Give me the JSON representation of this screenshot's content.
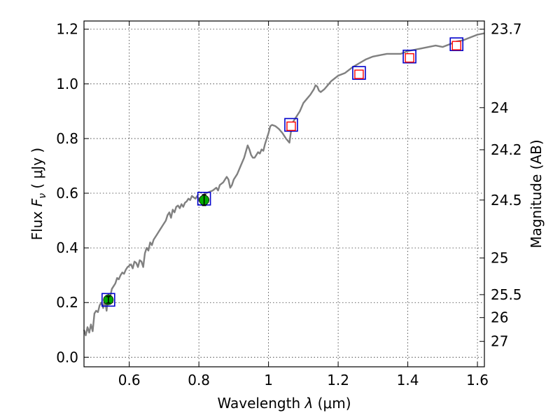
{
  "chart_data": {
    "type": "scatter",
    "xlabel_prefix": "Wavelength  ",
    "xlabel_symbol": "λ",
    "xlabel_suffix": " (μm)",
    "ylabel_prefix": "Flux  ",
    "ylabel_symbol": "F",
    "ylabel_subscript": "ν",
    "ylabel_suffix": "  ( μJy )",
    "y2label": "Magnitude (AB)",
    "xlim": [
      0.47,
      1.62
    ],
    "ylim": [
      -0.035,
      1.23
    ],
    "xticks": [
      0.6,
      0.8,
      1.0,
      1.2,
      1.4,
      1.6
    ],
    "xtick_labels": [
      "0.6",
      "0.8",
      "1",
      "1.2",
      "1.4",
      "1.6"
    ],
    "yticks": [
      0.0,
      0.2,
      0.4,
      0.6,
      0.8,
      1.0,
      1.2
    ],
    "ytick_labels": [
      "0.0",
      "0.2",
      "0.4",
      "0.6",
      "0.8",
      "1.0",
      "1.2"
    ],
    "y2ticks": [
      {
        "label": "23.7",
        "flux": 1.2
      },
      {
        "label": "24",
        "flux": 0.913
      },
      {
        "label": "24.2",
        "flux": 0.759
      },
      {
        "label": "24.5",
        "flux": 0.575
      },
      {
        "label": "25",
        "flux": 0.363
      },
      {
        "label": "25.5",
        "flux": 0.229
      },
      {
        "label": "26",
        "flux": 0.145
      },
      {
        "label": "27",
        "flux": 0.058
      }
    ],
    "grid": true,
    "colors": {
      "model_line": "#808080",
      "photometry_box": "#0000cc",
      "model_flux_marker": "#ff0000",
      "detection_marker": "#00aa00"
    },
    "series": [
      {
        "name": "model spectrum",
        "style": "line",
        "points": [
          [
            0.47,
            0.1
          ],
          [
            0.475,
            0.08
          ],
          [
            0.48,
            0.11
          ],
          [
            0.485,
            0.09
          ],
          [
            0.49,
            0.12
          ],
          [
            0.495,
            0.095
          ],
          [
            0.5,
            0.16
          ],
          [
            0.505,
            0.17
          ],
          [
            0.51,
            0.165
          ],
          [
            0.515,
            0.19
          ],
          [
            0.52,
            0.2
          ],
          [
            0.525,
            0.18
          ],
          [
            0.53,
            0.21
          ],
          [
            0.535,
            0.17
          ],
          [
            0.54,
            0.23
          ],
          [
            0.545,
            0.22
          ],
          [
            0.55,
            0.25
          ],
          [
            0.555,
            0.26
          ],
          [
            0.56,
            0.27
          ],
          [
            0.565,
            0.29
          ],
          [
            0.57,
            0.285
          ],
          [
            0.575,
            0.3
          ],
          [
            0.58,
            0.31
          ],
          [
            0.585,
            0.305
          ],
          [
            0.59,
            0.32
          ],
          [
            0.595,
            0.33
          ],
          [
            0.6,
            0.335
          ],
          [
            0.605,
            0.34
          ],
          [
            0.61,
            0.325
          ],
          [
            0.615,
            0.35
          ],
          [
            0.62,
            0.345
          ],
          [
            0.625,
            0.33
          ],
          [
            0.63,
            0.355
          ],
          [
            0.635,
            0.35
          ],
          [
            0.64,
            0.33
          ],
          [
            0.645,
            0.38
          ],
          [
            0.65,
            0.4
          ],
          [
            0.655,
            0.39
          ],
          [
            0.66,
            0.42
          ],
          [
            0.665,
            0.41
          ],
          [
            0.67,
            0.43
          ],
          [
            0.675,
            0.44
          ],
          [
            0.68,
            0.45
          ],
          [
            0.685,
            0.46
          ],
          [
            0.69,
            0.47
          ],
          [
            0.695,
            0.48
          ],
          [
            0.7,
            0.49
          ],
          [
            0.705,
            0.5
          ],
          [
            0.71,
            0.52
          ],
          [
            0.715,
            0.53
          ],
          [
            0.72,
            0.51
          ],
          [
            0.725,
            0.54
          ],
          [
            0.73,
            0.53
          ],
          [
            0.735,
            0.55
          ],
          [
            0.74,
            0.555
          ],
          [
            0.745,
            0.545
          ],
          [
            0.75,
            0.56
          ],
          [
            0.755,
            0.55
          ],
          [
            0.76,
            0.565
          ],
          [
            0.765,
            0.57
          ],
          [
            0.77,
            0.58
          ],
          [
            0.775,
            0.575
          ],
          [
            0.78,
            0.59
          ],
          [
            0.785,
            0.585
          ],
          [
            0.79,
            0.58
          ],
          [
            0.795,
            0.59
          ],
          [
            0.8,
            0.575
          ],
          [
            0.81,
            0.59
          ],
          [
            0.82,
            0.6
          ],
          [
            0.83,
            0.605
          ],
          [
            0.84,
            0.61
          ],
          [
            0.85,
            0.62
          ],
          [
            0.855,
            0.61
          ],
          [
            0.86,
            0.63
          ],
          [
            0.87,
            0.64
          ],
          [
            0.875,
            0.65
          ],
          [
            0.88,
            0.66
          ],
          [
            0.885,
            0.65
          ],
          [
            0.89,
            0.62
          ],
          [
            0.895,
            0.63
          ],
          [
            0.9,
            0.65
          ],
          [
            0.91,
            0.67
          ],
          [
            0.92,
            0.7
          ],
          [
            0.93,
            0.73
          ],
          [
            0.94,
            0.775
          ],
          [
            0.945,
            0.76
          ],
          [
            0.95,
            0.74
          ],
          [
            0.955,
            0.73
          ],
          [
            0.96,
            0.73
          ],
          [
            0.965,
            0.74
          ],
          [
            0.97,
            0.75
          ],
          [
            0.975,
            0.745
          ],
          [
            0.98,
            0.76
          ],
          [
            0.985,
            0.755
          ],
          [
            0.99,
            0.78
          ],
          [
            0.995,
            0.8
          ],
          [
            1.0,
            0.82
          ],
          [
            1.005,
            0.845
          ],
          [
            1.01,
            0.85
          ],
          [
            1.02,
            0.845
          ],
          [
            1.03,
            0.835
          ],
          [
            1.04,
            0.82
          ],
          [
            1.05,
            0.8
          ],
          [
            1.06,
            0.785
          ],
          [
            1.065,
            0.83
          ],
          [
            1.07,
            0.86
          ],
          [
            1.08,
            0.88
          ],
          [
            1.09,
            0.9
          ],
          [
            1.1,
            0.93
          ],
          [
            1.11,
            0.945
          ],
          [
            1.12,
            0.96
          ],
          [
            1.13,
            0.98
          ],
          [
            1.135,
            0.995
          ],
          [
            1.14,
            0.99
          ],
          [
            1.145,
            0.975
          ],
          [
            1.15,
            0.97
          ],
          [
            1.16,
            0.98
          ],
          [
            1.17,
            0.995
          ],
          [
            1.18,
            1.01
          ],
          [
            1.19,
            1.02
          ],
          [
            1.2,
            1.03
          ],
          [
            1.22,
            1.04
          ],
          [
            1.24,
            1.06
          ],
          [
            1.26,
            1.075
          ],
          [
            1.28,
            1.09
          ],
          [
            1.3,
            1.1
          ],
          [
            1.32,
            1.105
          ],
          [
            1.34,
            1.11
          ],
          [
            1.36,
            1.11
          ],
          [
            1.38,
            1.11
          ],
          [
            1.4,
            1.12
          ],
          [
            1.42,
            1.125
          ],
          [
            1.44,
            1.13
          ],
          [
            1.46,
            1.135
          ],
          [
            1.48,
            1.14
          ],
          [
            1.5,
            1.135
          ],
          [
            1.52,
            1.145
          ],
          [
            1.54,
            1.155
          ],
          [
            1.56,
            1.16
          ],
          [
            1.58,
            1.17
          ],
          [
            1.6,
            1.18
          ],
          [
            1.62,
            1.185
          ]
        ]
      },
      {
        "name": "photometry",
        "style": "square",
        "points": [
          [
            0.54,
            0.21
          ],
          [
            0.815,
            0.58
          ],
          [
            1.065,
            0.85
          ],
          [
            1.26,
            1.04
          ],
          [
            1.405,
            1.1
          ],
          [
            1.54,
            1.145
          ]
        ]
      },
      {
        "name": "model flux",
        "style": "open-square",
        "points": [
          [
            1.065,
            0.845
          ],
          [
            1.26,
            1.035
          ],
          [
            1.405,
            1.095
          ],
          [
            1.54,
            1.14
          ]
        ]
      },
      {
        "name": "detections",
        "style": "circle-errorbar",
        "points": [
          {
            "x": 0.54,
            "y": 0.21,
            "err": 0.012
          },
          {
            "x": 0.815,
            "y": 0.575,
            "err": 0.02
          }
        ]
      }
    ]
  }
}
